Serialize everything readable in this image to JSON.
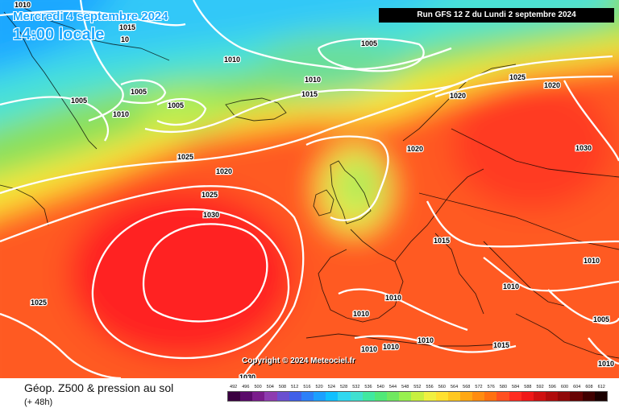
{
  "header": {
    "valid_date": "Mercredi 4 septembre 2024",
    "valid_time": "14:00 locale",
    "run_info": "Run GFS 12 Z du Lundi 2 septembre 2024"
  },
  "map": {
    "copyright": "Copyright © 2024 Meteociel.fr",
    "pressure_labels": [
      "1010",
      "1015",
      "10",
      "1010",
      "1005",
      "1005",
      "1005",
      "1010",
      "1010",
      "1015",
      "1005",
      "1020",
      "1025",
      "1030",
      "1020",
      "1025",
      "1030",
      "1020",
      "1025",
      "1030",
      "1015",
      "1010",
      "1010",
      "1010",
      "1010",
      "1010",
      "1010",
      "1010",
      "1015",
      "1005",
      "1010",
      "1025",
      "1020"
    ]
  },
  "footer": {
    "variable_title": "Géop. Z500 & pression au sol",
    "lead_time": "(+ 48h)"
  },
  "legend": {
    "labels": [
      "492",
      "496",
      "500",
      "504",
      "508",
      "512",
      "516",
      "520",
      "524",
      "528",
      "532",
      "536",
      "540",
      "544",
      "548",
      "552",
      "556",
      "560",
      "564",
      "568",
      "572",
      "576",
      "580",
      "584",
      "588",
      "592",
      "596",
      "600",
      "604",
      "608",
      "612"
    ],
    "colors": [
      "#3a0040",
      "#5a0a6a",
      "#7a1c8c",
      "#8e3cb0",
      "#6a50d0",
      "#4060e8",
      "#2c80f8",
      "#1ca0ff",
      "#10c0ff",
      "#30d8f0",
      "#40e0d0",
      "#40e8a0",
      "#50e878",
      "#70e860",
      "#98f050",
      "#c8f040",
      "#f0f040",
      "#ffe030",
      "#ffc820",
      "#ffa814",
      "#ff8c10",
      "#ff7010",
      "#ff5020",
      "#ff2c20",
      "#f01818",
      "#d01010",
      "#b00c0c",
      "#900808",
      "#680404",
      "#400000",
      "#1a0000"
    ]
  }
}
